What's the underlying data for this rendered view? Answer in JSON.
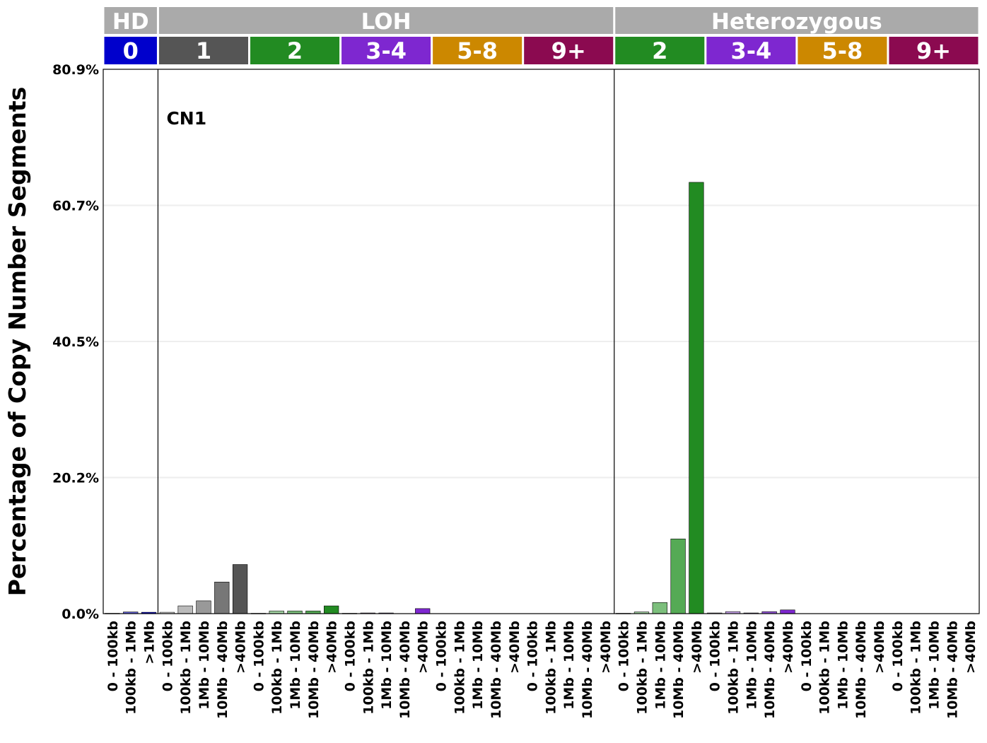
{
  "chart_data": {
    "type": "bar",
    "ylabel": "Percentage of Copy Number Segments",
    "yticks": [
      "0.0%",
      "20.2%",
      "40.5%",
      "60.7%",
      "80.9%"
    ],
    "ylim": [
      0,
      80.9
    ],
    "annotation": "CN1",
    "grid": true,
    "top_strips": [
      {
        "label": "HD",
        "color": "#aaaaaa",
        "groups": 1
      },
      {
        "label": "LOH",
        "color": "#aaaaaa",
        "groups": 5
      },
      {
        "label": "Heterozygous",
        "color": "#aaaaaa",
        "groups": 4
      }
    ],
    "groups": [
      {
        "label": "0",
        "color": "#0000cc",
        "categories": [
          "0 - 100kb",
          "100kb - 1Mb",
          ">1Mb"
        ],
        "values": [
          0.05,
          0.25,
          0.2
        ],
        "bar_colors": [
          "#a6a6e6",
          "#5f5fd6",
          "#0000cc"
        ]
      },
      {
        "label": "1",
        "color": "#555555",
        "categories": [
          "0 - 100kb",
          "100kb - 1Mb",
          "1Mb - 10Mb",
          "10Mb - 40Mb",
          ">40Mb"
        ],
        "values": [
          0.2,
          1.15,
          1.9,
          4.7,
          7.3
        ],
        "bar_colors": [
          "#dddddd",
          "#bbbbbb",
          "#999999",
          "#777777",
          "#555555"
        ]
      },
      {
        "label": "2",
        "color": "#228b22",
        "categories": [
          "0 - 100kb",
          "100kb - 1Mb",
          "1Mb - 10Mb",
          "10Mb - 40Mb",
          ">40Mb"
        ],
        "values": [
          0.05,
          0.4,
          0.4,
          0.4,
          1.15
        ],
        "bar_colors": [
          "#c8e6c8",
          "#a3d3a3",
          "#7cbf7c",
          "#55aa55",
          "#228b22"
        ]
      },
      {
        "label": "3-4",
        "color": "#7e27d0",
        "categories": [
          "0 - 100kb",
          "100kb - 1Mb",
          "1Mb - 10Mb",
          "10Mb - 40Mb",
          ">40Mb"
        ],
        "values": [
          0.05,
          0.1,
          0.1,
          0.0,
          0.75
        ],
        "bar_colors": [
          "#e3cff5",
          "#c7a3eb",
          "#a97be0",
          "#9255d8",
          "#7e27d0"
        ]
      },
      {
        "label": "5-8",
        "color": "#cc8800",
        "categories": [
          "0 - 100kb",
          "100kb - 1Mb",
          "1Mb - 10Mb",
          "10Mb - 40Mb",
          ">40Mb"
        ],
        "values": [
          0,
          0,
          0,
          0,
          0
        ],
        "bar_colors": [
          "#f2dca6",
          "#e8c46f",
          "#dcaa3c",
          "#d49a1c",
          "#cc8800"
        ]
      },
      {
        "label": "9+",
        "color": "#8b0a50",
        "categories": [
          "0 - 100kb",
          "100kb - 1Mb",
          "1Mb - 10Mb",
          "10Mb - 40Mb",
          ">40Mb"
        ],
        "values": [
          0,
          0,
          0,
          0,
          0
        ],
        "bar_colors": [
          "#e0b3cc",
          "#c477a0",
          "#a94478",
          "#9a2563",
          "#8b0a50"
        ]
      },
      {
        "label": "2",
        "color": "#228b22",
        "categories": [
          "0 - 100kb",
          "100kb - 1Mb",
          "1Mb - 10Mb",
          "10Mb - 40Mb",
          ">40Mb"
        ],
        "values": [
          0.05,
          0.25,
          1.65,
          11.1,
          64.1
        ],
        "bar_colors": [
          "#c8e6c8",
          "#a3d3a3",
          "#7cbf7c",
          "#55aa55",
          "#228b22"
        ]
      },
      {
        "label": "3-4",
        "color": "#7e27d0",
        "categories": [
          "0 - 100kb",
          "100kb - 1Mb",
          "1Mb - 10Mb",
          "10Mb - 40Mb",
          ">40Mb"
        ],
        "values": [
          0.1,
          0.3,
          0.1,
          0.3,
          0.55
        ],
        "bar_colors": [
          "#e3cff5",
          "#c7a3eb",
          "#a97be0",
          "#9255d8",
          "#7e27d0"
        ]
      },
      {
        "label": "5-8",
        "color": "#cc8800",
        "categories": [
          "0 - 100kb",
          "100kb - 1Mb",
          "1Mb - 10Mb",
          "10Mb - 40Mb",
          ">40Mb"
        ],
        "values": [
          0,
          0,
          0,
          0,
          0
        ],
        "bar_colors": [
          "#f2dca6",
          "#e8c46f",
          "#dcaa3c",
          "#d49a1c",
          "#cc8800"
        ]
      },
      {
        "label": "9+",
        "color": "#8b0a50",
        "categories": [
          "0 - 100kb",
          "100kb - 1Mb",
          "1Mb - 10Mb",
          "10Mb - 40Mb",
          ">40Mb"
        ],
        "values": [
          0,
          0,
          0,
          0,
          0
        ],
        "bar_colors": [
          "#e0b3cc",
          "#c477a0",
          "#a94478",
          "#9a2563",
          "#8b0a50"
        ]
      }
    ]
  }
}
